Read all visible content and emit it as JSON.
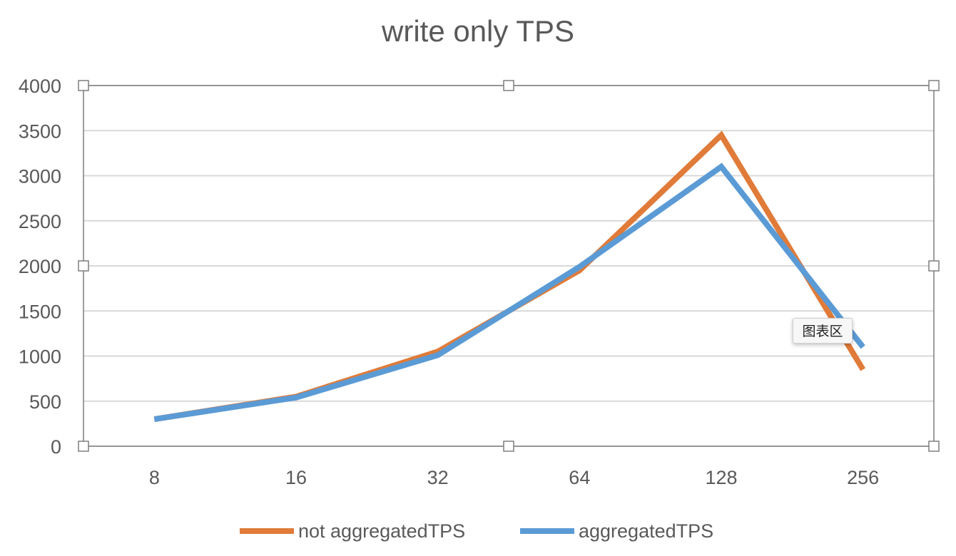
{
  "colors": {
    "series_1": "#E07B39",
    "series_2": "#5B9BD5",
    "grid": "#d9d9d9",
    "text": "#595959",
    "plot_border": "#7f7f7f"
  },
  "tooltip": {
    "label": "图表区"
  },
  "chart_data": {
    "type": "line",
    "title": "write only TPS",
    "xlabel": "",
    "ylabel": "",
    "categories": [
      "8",
      "16",
      "32",
      "64",
      "128",
      "256"
    ],
    "ylim": [
      0,
      4000
    ],
    "yticks": [
      0,
      500,
      1000,
      1500,
      2000,
      2500,
      3000,
      3500,
      4000
    ],
    "grid": true,
    "legend_position": "bottom",
    "series": [
      {
        "name": "not aggregatedTPS",
        "color": "#E07B39",
        "values": [
          300,
          550,
          1050,
          1950,
          3450,
          850
        ]
      },
      {
        "name": "aggregatedTPS",
        "color": "#5B9BD5",
        "values": [
          300,
          540,
          1010,
          1990,
          3100,
          1100
        ]
      }
    ]
  }
}
